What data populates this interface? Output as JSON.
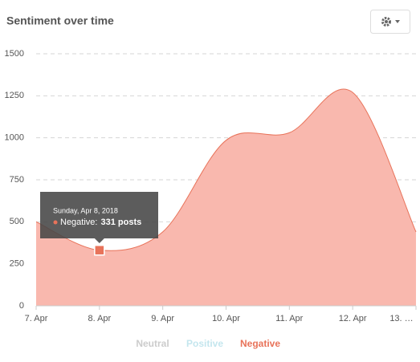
{
  "chart_data": {
    "type": "area",
    "title": "Sentiment over time",
    "categories": [
      "7. Apr",
      "8. Apr",
      "9. Apr",
      "10. Apr",
      "11. Apr",
      "12. Apr",
      "13. …"
    ],
    "series": [
      {
        "name": "Neutral",
        "color": "#cccccc",
        "hidden": true
      },
      {
        "name": "Positive",
        "color": "#c4e6ee",
        "hidden": true
      },
      {
        "name": "Negative",
        "color": "#e8735a",
        "fill": "#f9b8ae",
        "values": [
          500,
          331,
          440,
          985,
          1030,
          1270,
          440
        ]
      }
    ],
    "ylim": [
      0,
      1500
    ],
    "yticks": [
      0,
      250,
      500,
      750,
      1000,
      1250,
      1500
    ],
    "grid": true,
    "tooltip": {
      "date": "Sunday, Apr 8, 2018",
      "series_label": "Negative:",
      "value_label": "331 posts",
      "index": 1
    }
  }
}
